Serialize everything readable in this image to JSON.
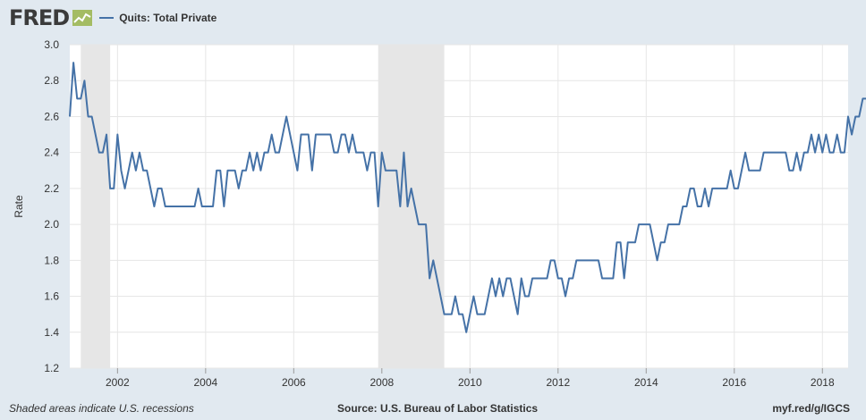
{
  "header": {
    "logo_text": "FRED",
    "logo_icon": "line-graph-icon"
  },
  "colors": {
    "background": "#e1e9f0",
    "plot_background": "#ffffff",
    "series_line": "#4572a7",
    "recession_shade": "#e6e6e6",
    "grid": "#e6e6e6"
  },
  "footer": {
    "left": "Shaded areas indicate U.S. recessions",
    "source": "Source: U.S. Bureau of Labor Statistics",
    "link": "myf.red/g/IGCS"
  },
  "chart_data": {
    "type": "line",
    "title": "",
    "xlabel": "",
    "ylabel": "Rate",
    "xlim": [
      "2000-12",
      "2018-08"
    ],
    "ylim": [
      1.2,
      3.0
    ],
    "yticks": [
      "1.2",
      "1.4",
      "1.6",
      "1.8",
      "2.0",
      "2.2",
      "2.4",
      "2.6",
      "2.8",
      "3.0"
    ],
    "xticks": [
      "2002",
      "2004",
      "2006",
      "2008",
      "2010",
      "2012",
      "2014",
      "2016",
      "2018"
    ],
    "grid": true,
    "legend_position": "top-left",
    "recessions": [
      [
        "2001-03",
        "2001-11"
      ],
      [
        "2007-12",
        "2009-06"
      ]
    ],
    "series": [
      {
        "name": "Quits: Total Private",
        "start": "2000-12",
        "frequency": "monthly",
        "values": [
          2.6,
          2.9,
          2.7,
          2.7,
          2.8,
          2.6,
          2.6,
          2.5,
          2.4,
          2.4,
          2.5,
          2.2,
          2.2,
          2.5,
          2.3,
          2.2,
          2.3,
          2.4,
          2.3,
          2.4,
          2.3,
          2.3,
          2.2,
          2.1,
          2.2,
          2.2,
          2.1,
          2.1,
          2.1,
          2.1,
          2.1,
          2.1,
          2.1,
          2.1,
          2.1,
          2.2,
          2.1,
          2.1,
          2.1,
          2.1,
          2.3,
          2.3,
          2.1,
          2.3,
          2.3,
          2.3,
          2.2,
          2.3,
          2.3,
          2.4,
          2.3,
          2.4,
          2.3,
          2.4,
          2.4,
          2.5,
          2.4,
          2.4,
          2.5,
          2.6,
          2.5,
          2.4,
          2.3,
          2.5,
          2.5,
          2.5,
          2.3,
          2.5,
          2.5,
          2.5,
          2.5,
          2.5,
          2.4,
          2.4,
          2.5,
          2.5,
          2.4,
          2.5,
          2.4,
          2.4,
          2.4,
          2.3,
          2.4,
          2.4,
          2.1,
          2.4,
          2.3,
          2.3,
          2.3,
          2.3,
          2.1,
          2.4,
          2.1,
          2.2,
          2.1,
          2.0,
          2.0,
          2.0,
          1.7,
          1.8,
          1.7,
          1.6,
          1.5,
          1.5,
          1.5,
          1.6,
          1.5,
          1.5,
          1.4,
          1.5,
          1.6,
          1.5,
          1.5,
          1.5,
          1.6,
          1.7,
          1.6,
          1.7,
          1.6,
          1.7,
          1.7,
          1.6,
          1.5,
          1.7,
          1.6,
          1.6,
          1.7,
          1.7,
          1.7,
          1.7,
          1.7,
          1.8,
          1.8,
          1.7,
          1.7,
          1.6,
          1.7,
          1.7,
          1.8,
          1.8,
          1.8,
          1.8,
          1.8,
          1.8,
          1.8,
          1.7,
          1.7,
          1.7,
          1.7,
          1.9,
          1.9,
          1.7,
          1.9,
          1.9,
          1.9,
          2.0,
          2.0,
          2.0,
          2.0,
          1.9,
          1.8,
          1.9,
          1.9,
          2.0,
          2.0,
          2.0,
          2.0,
          2.1,
          2.1,
          2.2,
          2.2,
          2.1,
          2.1,
          2.2,
          2.1,
          2.2,
          2.2,
          2.2,
          2.2,
          2.2,
          2.3,
          2.2,
          2.2,
          2.3,
          2.4,
          2.3,
          2.3,
          2.3,
          2.3,
          2.4,
          2.4,
          2.4,
          2.4,
          2.4,
          2.4,
          2.4,
          2.3,
          2.3,
          2.4,
          2.3,
          2.4,
          2.4,
          2.5,
          2.4,
          2.5,
          2.4,
          2.5,
          2.4,
          2.4,
          2.5,
          2.4,
          2.4,
          2.6,
          2.5,
          2.6,
          2.6,
          2.7,
          2.7
        ]
      }
    ]
  }
}
